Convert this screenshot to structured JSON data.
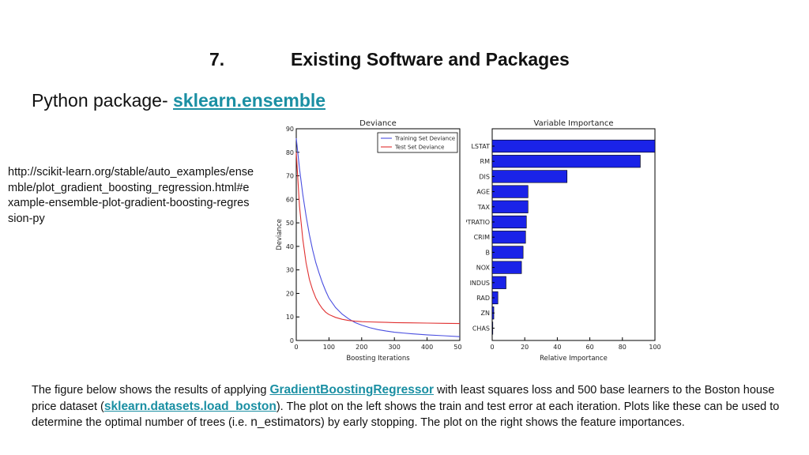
{
  "slide": {
    "number": "7.",
    "title": "Existing Software and Packages",
    "package_prefix": "Python package- ",
    "package_link": "sklearn.ensemble",
    "url": "http://scikit-learn.org/stable/auto_examples/ensemble/plot_gradient_boosting_regression.html#example-ensemble-plot-gradient-boosting-regression-py",
    "paragraph": {
      "t1": "The figure below shows the results of applying ",
      "link1": "GradientBoostingRegressor",
      "t2": " with least squares loss and 500 base learners to the Boston house price dataset (",
      "link2": "sklearn.datasets.load_boston",
      "t3": "). The plot on the left shows the train and test error at each iteration. Plots like these can be used to determine the optimal number of trees (i.e. ",
      "code": "n_estimators",
      "t4": ") by early stopping. The plot on the right shows the feature importances."
    }
  },
  "chart_data": [
    {
      "type": "line",
      "title": "Deviance",
      "xlabel": "Boosting Iterations",
      "ylabel": "Deviance",
      "xlim": [
        0,
        500
      ],
      "ylim": [
        0,
        90
      ],
      "xticks": [
        0,
        100,
        200,
        300,
        400,
        500
      ],
      "yticks": [
        0,
        10,
        20,
        30,
        40,
        50,
        60,
        70,
        80,
        90
      ],
      "legend_position": "top-right",
      "x": [
        0,
        10,
        20,
        30,
        40,
        50,
        60,
        70,
        80,
        90,
        100,
        120,
        140,
        160,
        180,
        200,
        225,
        250,
        275,
        300,
        350,
        400,
        450,
        500
      ],
      "series": [
        {
          "name": "Training Set Deviance",
          "color": "#4a4fe0",
          "values": [
            86,
            73,
            62,
            53,
            45,
            38.5,
            33,
            28.5,
            24.5,
            21,
            18,
            14,
            11.2,
            9.2,
            7.6,
            6.5,
            5.4,
            4.6,
            4,
            3.5,
            2.9,
            2.4,
            2,
            1.6
          ]
        },
        {
          "name": "Test Set Deviance",
          "color": "#e03030",
          "values": [
            80,
            57,
            43,
            33,
            26,
            21.5,
            18,
            15.5,
            13.5,
            12,
            11,
            9.8,
            9,
            8.5,
            8.2,
            8,
            7.9,
            7.8,
            7.7,
            7.6,
            7.5,
            7.4,
            7.3,
            7.2
          ]
        }
      ]
    },
    {
      "type": "bar",
      "orientation": "horizontal",
      "title": "Variable Importance",
      "xlabel": "Relative Importance",
      "ylabel": "",
      "xlim": [
        0,
        100
      ],
      "xticks": [
        0,
        20,
        40,
        60,
        80,
        100
      ],
      "color": "#1a23e8",
      "categories": [
        "LSTAT",
        "RM",
        "DIS",
        "AGE",
        "TAX",
        "PTRATIO",
        "CRIM",
        "B",
        "NOX",
        "INDUS",
        "RAD",
        "ZN",
        "CHAS"
      ],
      "values": [
        100,
        91,
        46,
        22,
        22,
        21,
        20.5,
        19,
        18,
        8.5,
        3.5,
        1,
        0.2
      ]
    }
  ]
}
